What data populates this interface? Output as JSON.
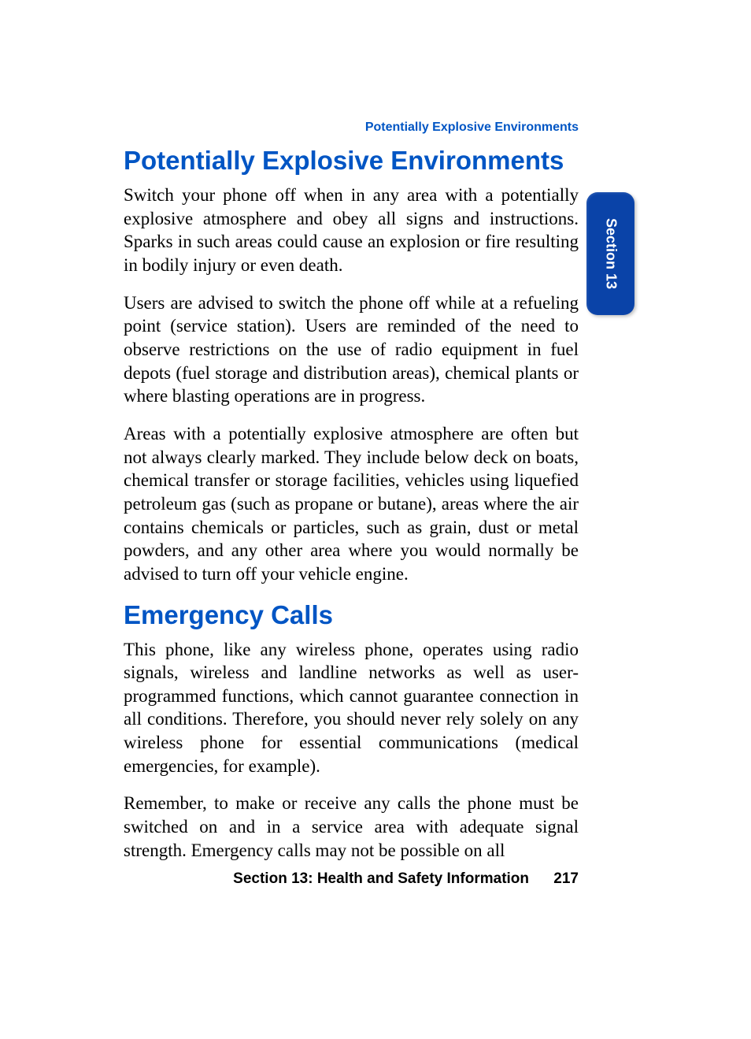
{
  "colors": {
    "heading_blue": "#0055c4",
    "tab_blue": "#0a43a8",
    "text_black": "#000000",
    "background": "#ffffff",
    "tab_text": "#ffffff"
  },
  "typography": {
    "body_font": "Palatino Linotype",
    "heading_font": "Arial Narrow",
    "body_size_pt": 17,
    "heading_size_pt": 25,
    "running_head_size_pt": 12,
    "footer_size_pt": 14,
    "tab_size_pt": 13
  },
  "running_head": "Potentially Explosive Environments",
  "side_tab": "Section 13",
  "sections": [
    {
      "heading": "Potentially Explosive Environments",
      "paragraphs": [
        "Switch your phone off when in any area with a potentially explosive atmosphere and obey all signs and instructions. Sparks in such areas could cause an explosion or fire resulting in bodily injury or even death.",
        "Users are advised to switch the phone off while at a refueling point (service station). Users are reminded of the need to observe restrictions on the use of radio equipment in fuel depots (fuel storage and distribution areas), chemical plants or where blasting operations are in progress.",
        "Areas with a potentially explosive atmosphere are often but not always clearly marked. They include below deck on boats, chemical transfer or storage facilities, vehicles using liquefied petroleum gas (such as propane or butane), areas where the air contains chemicals or particles, such as grain, dust or metal powders, and any other area where you would normally be advised to turn off your vehicle engine."
      ]
    },
    {
      "heading": "Emergency Calls",
      "paragraphs": [
        "This phone, like any wireless phone, operates using radio signals, wireless and landline networks as well as user-programmed functions, which cannot guarantee connection in all conditions. Therefore, you should never rely solely on any wireless phone for essential communications (medical emergencies, for example).",
        "Remember, to make or receive any calls the phone must be switched on and in a service area with adequate signal strength. Emergency calls may not be possible on all"
      ]
    }
  ],
  "footer": {
    "label": "Section 13: Health and Safety Information",
    "page_number": "217"
  }
}
